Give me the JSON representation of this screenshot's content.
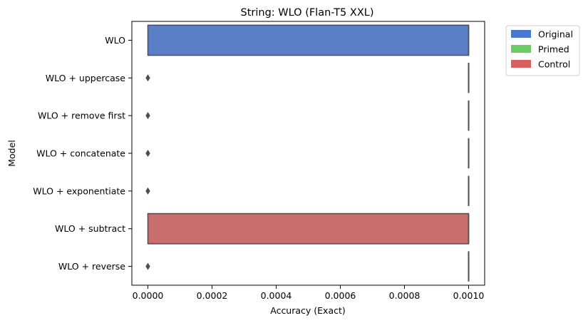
{
  "chart_data": {
    "type": "box",
    "orientation": "horizontal",
    "title": "String: WLO (Flan-T5 XXL)",
    "xlabel": "Accuracy (Exact)",
    "ylabel": "Model",
    "xlim": [
      -5e-05,
      0.00105
    ],
    "xticks": [
      0,
      0.0002,
      0.0004,
      0.0006,
      0.0008,
      0.001
    ],
    "xtick_labels": [
      "0.0000",
      "0.0002",
      "0.0004",
      "0.0006",
      "0.0008",
      "0.0010"
    ],
    "categories": [
      "WLO",
      "WLO + uppercase",
      "WLO + remove first",
      "WLO + concatenate",
      "WLO + exponentiate",
      "WLO + subtract",
      "WLO + reverse"
    ],
    "boxes": [
      {
        "category": "WLO",
        "group": "Original",
        "q1": 0.0,
        "median": 0.001,
        "q3": 0.001,
        "whisker_low": 0.0,
        "whisker_high": 0.001,
        "outliers": []
      },
      {
        "category": "WLO + uppercase",
        "group": "Primed",
        "q1": 0.001,
        "median": 0.001,
        "q3": 0.001,
        "whisker_low": 0.001,
        "whisker_high": 0.001,
        "outliers": [
          0.0
        ]
      },
      {
        "category": "WLO + remove first",
        "group": "Primed",
        "q1": 0.001,
        "median": 0.001,
        "q3": 0.001,
        "whisker_low": 0.001,
        "whisker_high": 0.001,
        "outliers": [
          0.0
        ]
      },
      {
        "category": "WLO + concatenate",
        "group": "Primed",
        "q1": 0.001,
        "median": 0.001,
        "q3": 0.001,
        "whisker_low": 0.001,
        "whisker_high": 0.001,
        "outliers": [
          0.0
        ]
      },
      {
        "category": "WLO + exponentiate",
        "group": "Primed",
        "q1": 0.001,
        "median": 0.001,
        "q3": 0.001,
        "whisker_low": 0.001,
        "whisker_high": 0.001,
        "outliers": [
          0.0
        ]
      },
      {
        "category": "WLO + subtract",
        "group": "Control",
        "q1": 0.0,
        "median": 0.001,
        "q3": 0.001,
        "whisker_low": 0.0,
        "whisker_high": 0.001,
        "outliers": []
      },
      {
        "category": "WLO + reverse",
        "group": "Primed",
        "q1": 0.001,
        "median": 0.001,
        "q3": 0.001,
        "whisker_low": 0.001,
        "whisker_high": 0.001,
        "outliers": [
          0.0
        ]
      }
    ],
    "legend": {
      "placement": "outside-top-right",
      "entries": [
        {
          "label": "Original",
          "color": "#4878d0"
        },
        {
          "label": "Primed",
          "color": "#6acc64"
        },
        {
          "label": "Control",
          "color": "#d65f5f"
        }
      ]
    },
    "box_fill_colors": {
      "Original": "#5a7fc6",
      "Primed": "#6acc64",
      "Control": "#c86e6e"
    },
    "edge_color": "#4d4d4d",
    "grid": false
  }
}
